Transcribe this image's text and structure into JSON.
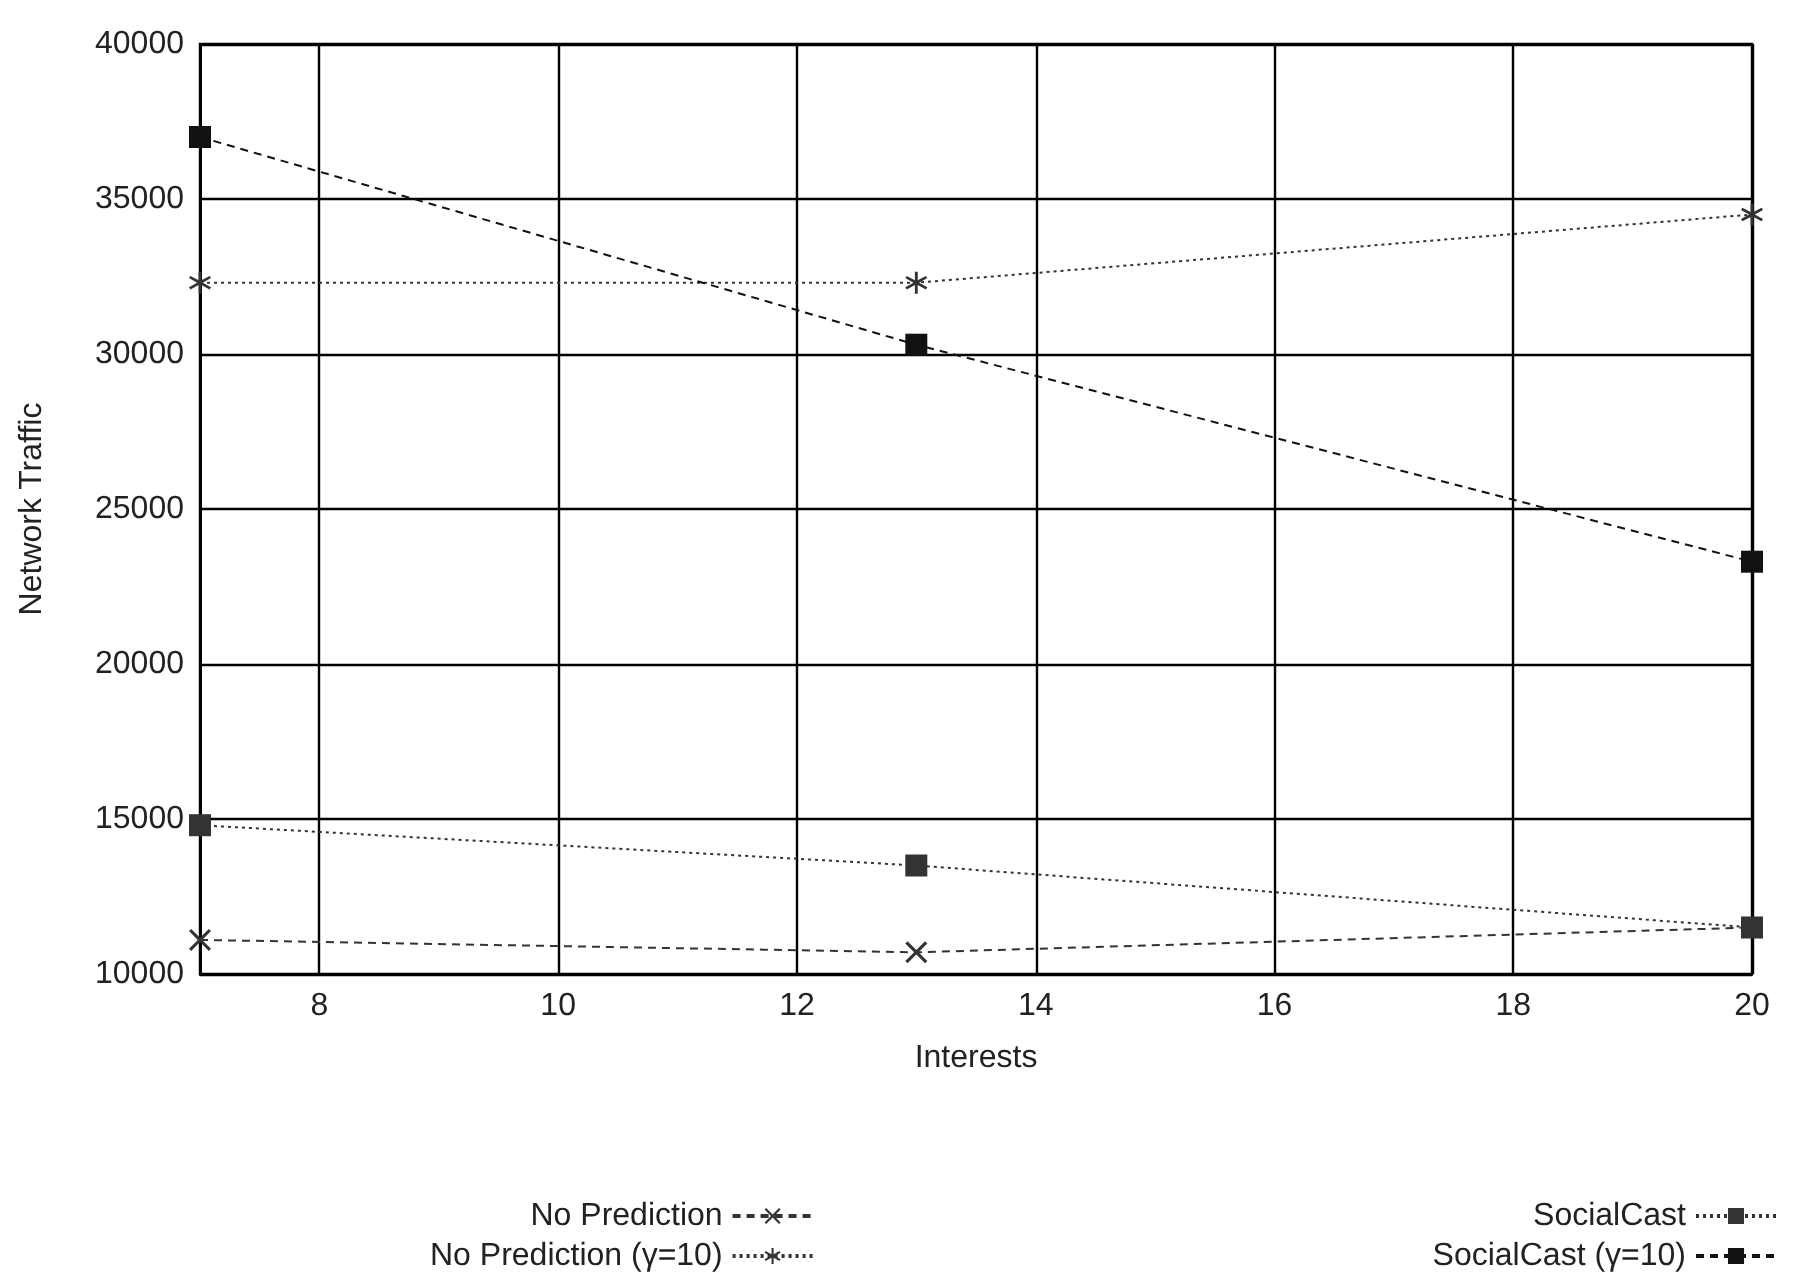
{
  "chart_data": {
    "type": "line",
    "xlabel": "Interests",
    "ylabel": "Network Traffic",
    "x": [
      7,
      13,
      20
    ],
    "series": [
      {
        "name": "No Prediction",
        "color": "#333333",
        "values": [
          11100,
          10700,
          11500
        ],
        "marker": "cross",
        "line_style": "dashed"
      },
      {
        "name": "No Prediction (γ=10)",
        "color": "#333333",
        "values": [
          32300,
          32300,
          34500
        ],
        "marker": "star",
        "line_style": "dotted"
      },
      {
        "name": "SocialCast",
        "color": "#333333",
        "values": [
          14800,
          13500,
          11500
        ],
        "marker": "square",
        "line_style": "dotted"
      },
      {
        "name": "SocialCast (γ=10)",
        "color": "#111111",
        "values": [
          37000,
          30300,
          23300
        ],
        "marker": "square",
        "line_style": "dashed"
      }
    ],
    "xlim": [
      7,
      20
    ],
    "xticks": [
      8,
      10,
      12,
      14,
      16,
      18,
      20
    ],
    "ylim": [
      10000,
      40000
    ],
    "yticks": [
      10000,
      15000,
      20000,
      25000,
      30000,
      35000,
      40000
    ],
    "grid": true,
    "legend": "bottom"
  }
}
